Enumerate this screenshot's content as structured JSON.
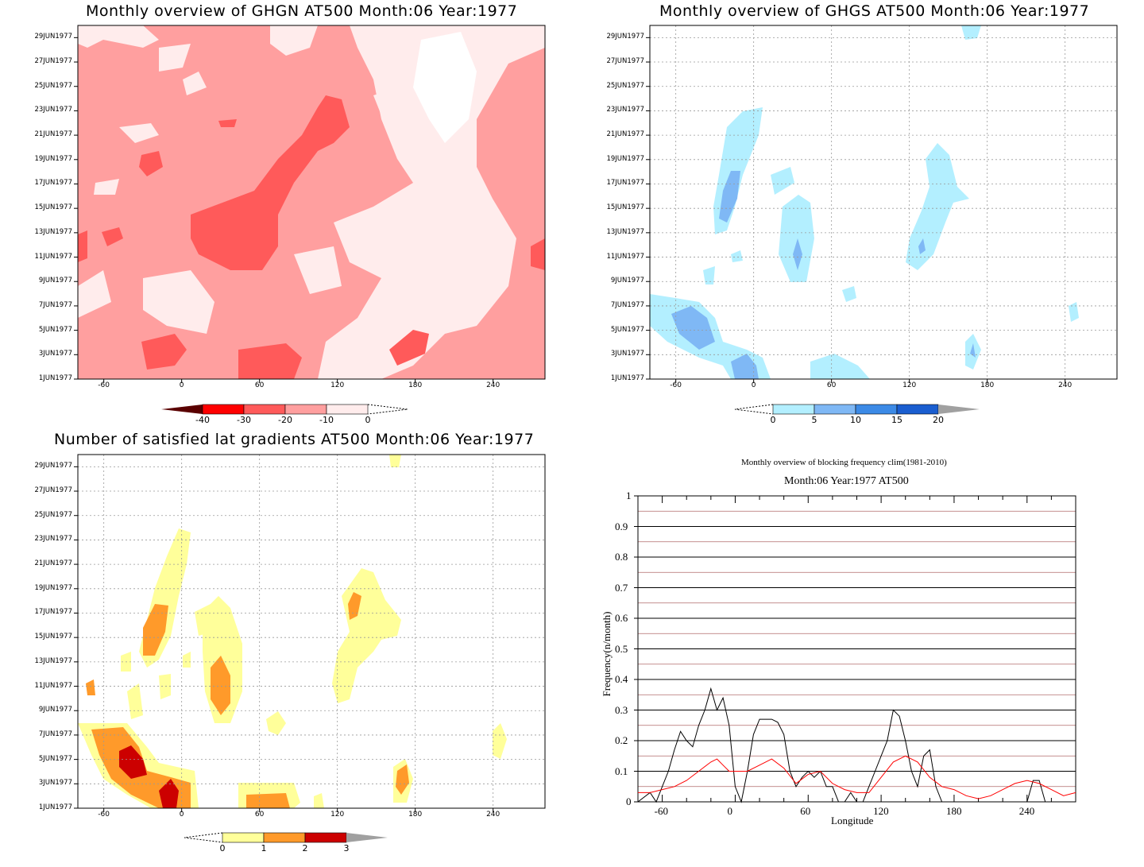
{
  "dates": [
    "1JUN1977",
    "3JUN1977",
    "5JUN1977",
    "7JUN1977",
    "9JUN1977",
    "11JUN1977",
    "13JUN1977",
    "15JUN1977",
    "17JUN1977",
    "19JUN1977",
    "21JUN1977",
    "23JUN1977",
    "25JUN1977",
    "27JUN1977",
    "29JUN1977"
  ],
  "lon_ticks": [
    "-60",
    "0",
    "60",
    "120",
    "180",
    "240"
  ],
  "panels": {
    "ghgn": {
      "title": "Monthly overview of GHGN AT500 Month:06 Year:1977",
      "colorbar": {
        "labels": [
          "-40",
          "-30",
          "-20",
          "-10",
          "0"
        ],
        "colors": [
          "#5a0000",
          "#ff0000",
          "#ff5a5a",
          "#ff9f9f",
          "#ffecec"
        ]
      }
    },
    "ghgs": {
      "title": "Monthly overview of GHGS AT500 Month:06 Year:1977",
      "colorbar": {
        "labels": [
          "0",
          "5",
          "10",
          "15",
          "20"
        ],
        "colors": [
          "#b3efff",
          "#7fb8f5",
          "#3c8ae6",
          "#1a5ed0",
          "#a0a0a0"
        ]
      }
    },
    "gradients": {
      "title": "Number of satisfied lat gradients AT500 Month:06 Year:1977",
      "colorbar": {
        "labels": [
          "0",
          "1",
          "2",
          "3"
        ],
        "colors": [
          "#ffff9a",
          "#ff9a2a",
          "#cc0000",
          "#a0a0a0"
        ]
      }
    },
    "blocking": {
      "title1": "Monthly overview of blocking frequency clim(1981-2010)",
      "title2": "Month:06 Year:1977  AT500",
      "ylabel": "Frequency(n/month)",
      "xlabel": "Longitude",
      "yticks": [
        "0",
        "0.1",
        "0.2",
        "0.3",
        "0.4",
        "0.5",
        "0.6",
        "0.7",
        "0.8",
        "0.9",
        "1"
      ],
      "xticks": [
        "-60",
        "0",
        "60",
        "120",
        "180",
        "240"
      ]
    }
  },
  "chart_data": [
    {
      "type": "heatmap",
      "title": "Monthly overview of GHGN AT500 Month:06 Year:1977",
      "xlabel": "",
      "ylabel": "",
      "xlim": [
        -80,
        280
      ],
      "y_range": [
        "1JUN1977",
        "30JUN1977"
      ],
      "levels": [
        -40,
        -30,
        -20,
        -10,
        0
      ],
      "note_values": "contour field of GHGN, mostly between -20 and 0"
    },
    {
      "type": "heatmap",
      "title": "Monthly overview of GHGS AT500 Month:06 Year:1977",
      "xlim": [
        -80,
        280
      ],
      "y_range": [
        "1JUN1977",
        "30JUN1977"
      ],
      "levels": [
        0,
        5,
        10,
        15,
        20
      ]
    },
    {
      "type": "heatmap",
      "title": "Number of satisfied lat gradients AT500 Month:06 Year:1977",
      "xlim": [
        -80,
        280
      ],
      "y_range": [
        "1JUN1977",
        "30JUN1977"
      ],
      "levels": [
        0,
        1,
        2,
        3
      ]
    },
    {
      "type": "line",
      "title": "Monthly overview of blocking frequency clim(1981-2010)",
      "subtitle": "Month:06 Year:1977  AT500",
      "xlabel": "Longitude",
      "ylabel": "Frequency(n/month)",
      "xlim": [
        -80,
        280
      ],
      "ylim": [
        0,
        1
      ],
      "series": [
        {
          "name": "",
          "color": "#000000",
          "x": [
            -80,
            -70,
            -65,
            -60,
            -55,
            -50,
            -45,
            -40,
            -35,
            -30,
            -25,
            -20,
            -15,
            -10,
            -5,
            0,
            5,
            10,
            15,
            20,
            25,
            30,
            35,
            40,
            45,
            50,
            55,
            60,
            65,
            70,
            75,
            80,
            85,
            90,
            95,
            100,
            105,
            110,
            115,
            120,
            125,
            130,
            135,
            140,
            145,
            150,
            155,
            160,
            165,
            170,
            175,
            180,
            190,
            200,
            210,
            220,
            230,
            240,
            245,
            250,
            255,
            260,
            270,
            280
          ],
          "y": [
            0.0,
            0.03,
            0.0,
            0.05,
            0.1,
            0.17,
            0.23,
            0.2,
            0.18,
            0.25,
            0.3,
            0.37,
            0.3,
            0.34,
            0.25,
            0.05,
            0.0,
            0.1,
            0.22,
            0.27,
            0.27,
            0.27,
            0.26,
            0.22,
            0.1,
            0.05,
            0.08,
            0.1,
            0.08,
            0.1,
            0.05,
            0.05,
            0.0,
            0.0,
            0.03,
            0.0,
            0.0,
            0.05,
            0.1,
            0.15,
            0.2,
            0.3,
            0.28,
            0.2,
            0.1,
            0.05,
            0.15,
            0.17,
            0.05,
            0.0,
            0.0,
            0.0,
            0.0,
            0.0,
            0.0,
            0.0,
            0.0,
            0.0,
            0.07,
            0.07,
            0.0,
            0.0,
            0.0,
            0.0
          ]
        },
        {
          "name": "",
          "color": "#ff0000",
          "x": [
            -80,
            -70,
            -60,
            -50,
            -40,
            -30,
            -20,
            -15,
            -10,
            -5,
            0,
            10,
            20,
            30,
            40,
            50,
            60,
            70,
            80,
            90,
            100,
            110,
            120,
            130,
            140,
            150,
            160,
            170,
            180,
            190,
            200,
            210,
            220,
            230,
            240,
            250,
            260,
            270,
            280
          ],
          "y": [
            0.03,
            0.03,
            0.04,
            0.05,
            0.07,
            0.1,
            0.13,
            0.14,
            0.12,
            0.1,
            0.1,
            0.1,
            0.12,
            0.14,
            0.11,
            0.06,
            0.09,
            0.1,
            0.06,
            0.04,
            0.03,
            0.03,
            0.08,
            0.13,
            0.15,
            0.13,
            0.08,
            0.05,
            0.04,
            0.02,
            0.01,
            0.02,
            0.04,
            0.06,
            0.07,
            0.06,
            0.04,
            0.02,
            0.03
          ]
        }
      ]
    }
  ]
}
